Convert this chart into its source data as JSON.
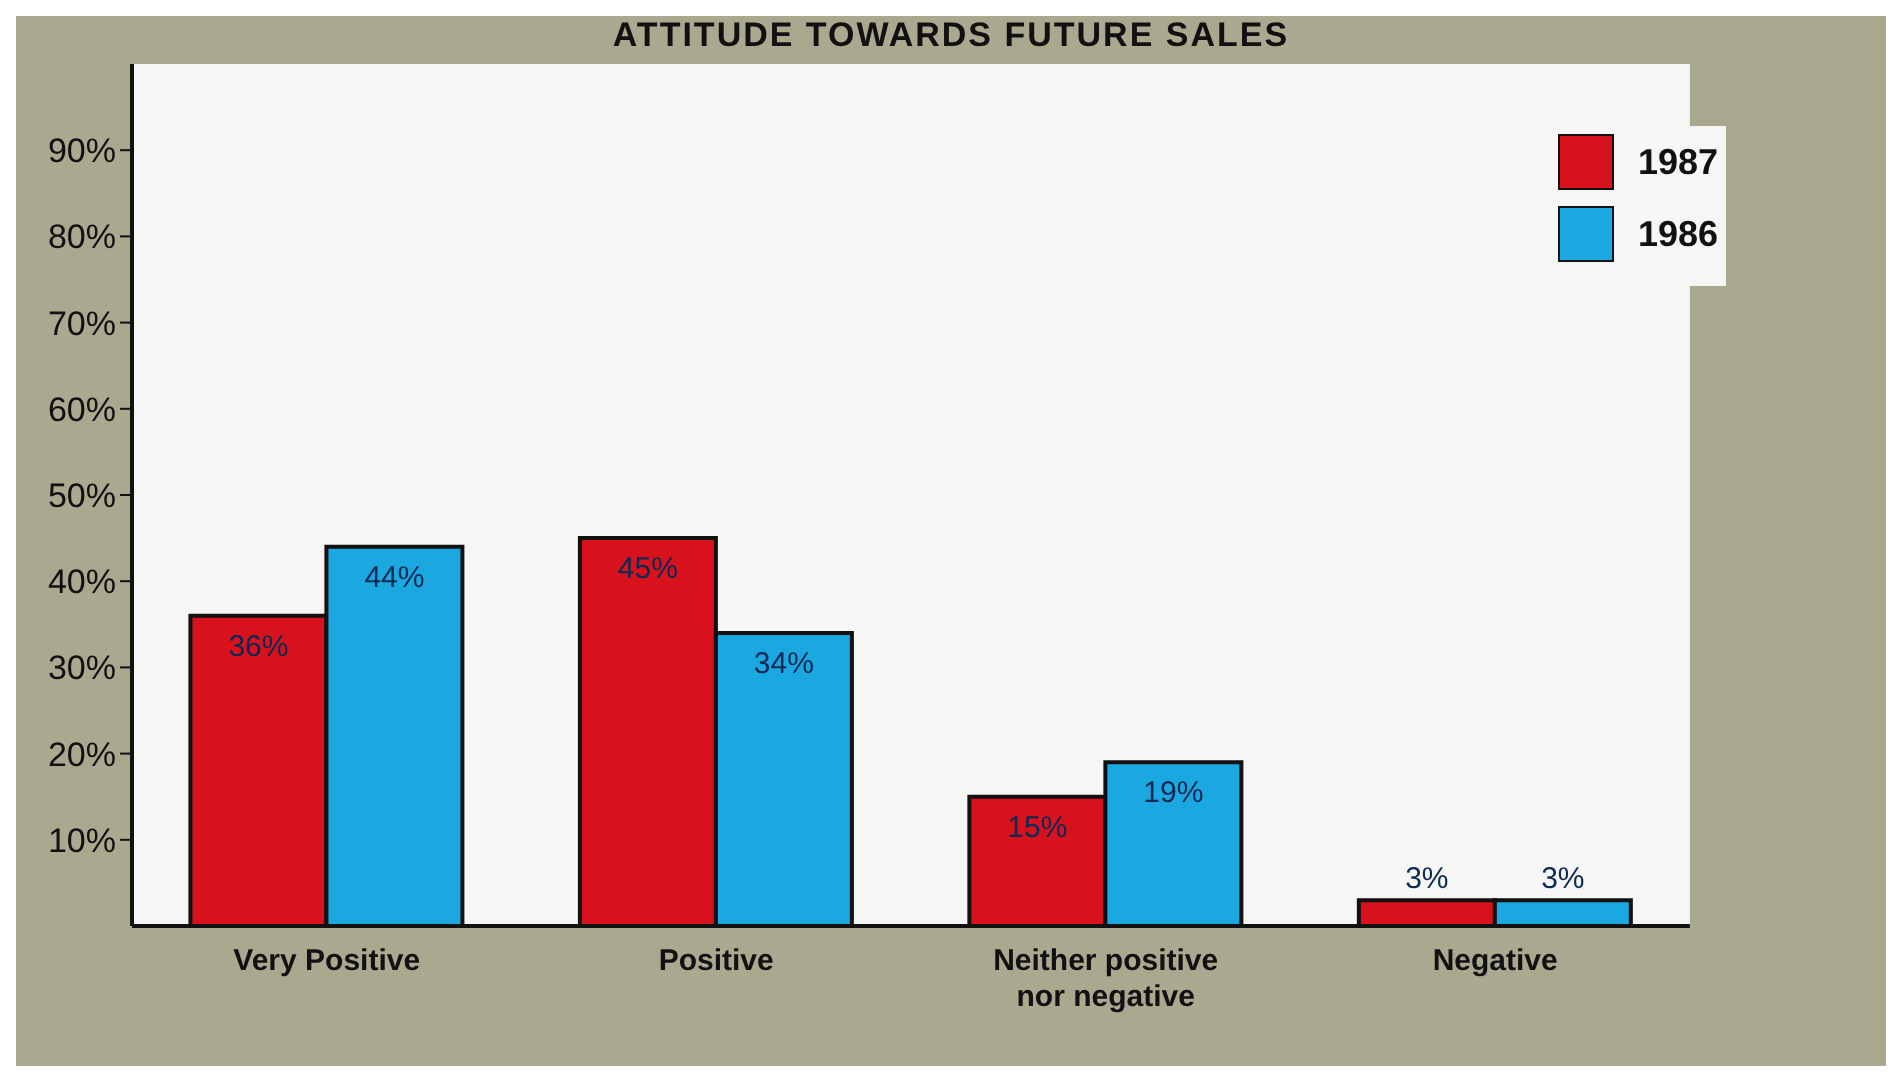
{
  "chart_data": {
    "type": "bar",
    "title": "ATTITUDE TOWARDS FUTURE SALES",
    "categories": [
      "Very Positive",
      "Positive",
      "Neither positive nor negative",
      "Negative"
    ],
    "series": [
      {
        "name": "1987",
        "color": "#d8121c",
        "values": [
          36,
          45,
          15,
          3
        ]
      },
      {
        "name": "1986",
        "color": "#1ba7df",
        "values": [
          44,
          34,
          19,
          3
        ]
      }
    ],
    "ylim": [
      0,
      100
    ],
    "yticks": [
      {
        "value": 10,
        "label": "10%"
      },
      {
        "value": 20,
        "label": "20%"
      },
      {
        "value": 30,
        "label": "30%"
      },
      {
        "value": 40,
        "label": "40%"
      },
      {
        "value": 50,
        "label": "50%"
      },
      {
        "value": 60,
        "label": "60%"
      },
      {
        "value": 70,
        "label": "70%"
      },
      {
        "value": 80,
        "label": "80%"
      },
      {
        "value": 90,
        "label": "90%"
      }
    ],
    "value_labels": [
      [
        "36%",
        "45%",
        "15%",
        "3%"
      ],
      [
        "44%",
        "34%",
        "19%",
        "3%"
      ]
    ],
    "legend": "top right",
    "grid": false
  }
}
